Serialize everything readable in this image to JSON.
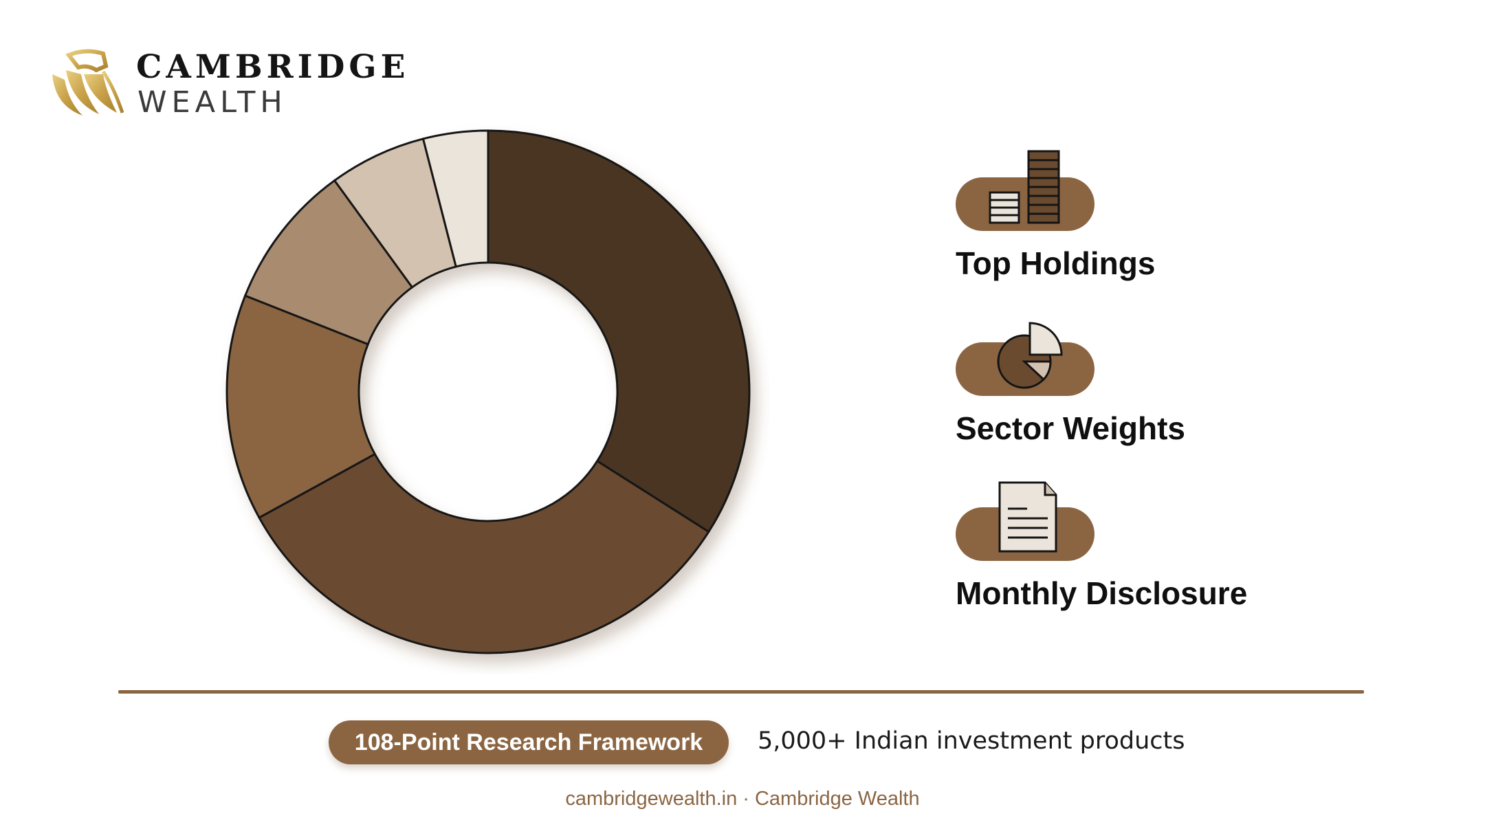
{
  "brand": {
    "name": "CAMBRIDGE",
    "sub": "WEALTH"
  },
  "colors": {
    "accent": "#8b6542",
    "slices": [
      "#4a3421",
      "#6b4b30",
      "#8b6542",
      "#a98b70",
      "#d4c2b0",
      "#ebe4da"
    ]
  },
  "chart_data": {
    "type": "pie",
    "donut": true,
    "title": "",
    "slices": [
      {
        "value": 34,
        "color": "#4a3421"
      },
      {
        "value": 33,
        "color": "#6b4b30"
      },
      {
        "value": 14,
        "color": "#8b6542"
      },
      {
        "value": 9,
        "color": "#a98b70"
      },
      {
        "value": 6,
        "color": "#d4c2b0"
      },
      {
        "value": 4,
        "color": "#ebe4da"
      }
    ]
  },
  "features": [
    {
      "icon": "bar-chart-icon",
      "label": "Top Holdings"
    },
    {
      "icon": "pie-chart-icon",
      "label": "Sector Weights"
    },
    {
      "icon": "document-icon",
      "label": "Monthly Disclosure"
    }
  ],
  "bottom": {
    "framework": "108-Point Research Framework",
    "products": "5,000+ Indian investment products",
    "footer": "cambridgewealth.in · Cambridge Wealth"
  }
}
